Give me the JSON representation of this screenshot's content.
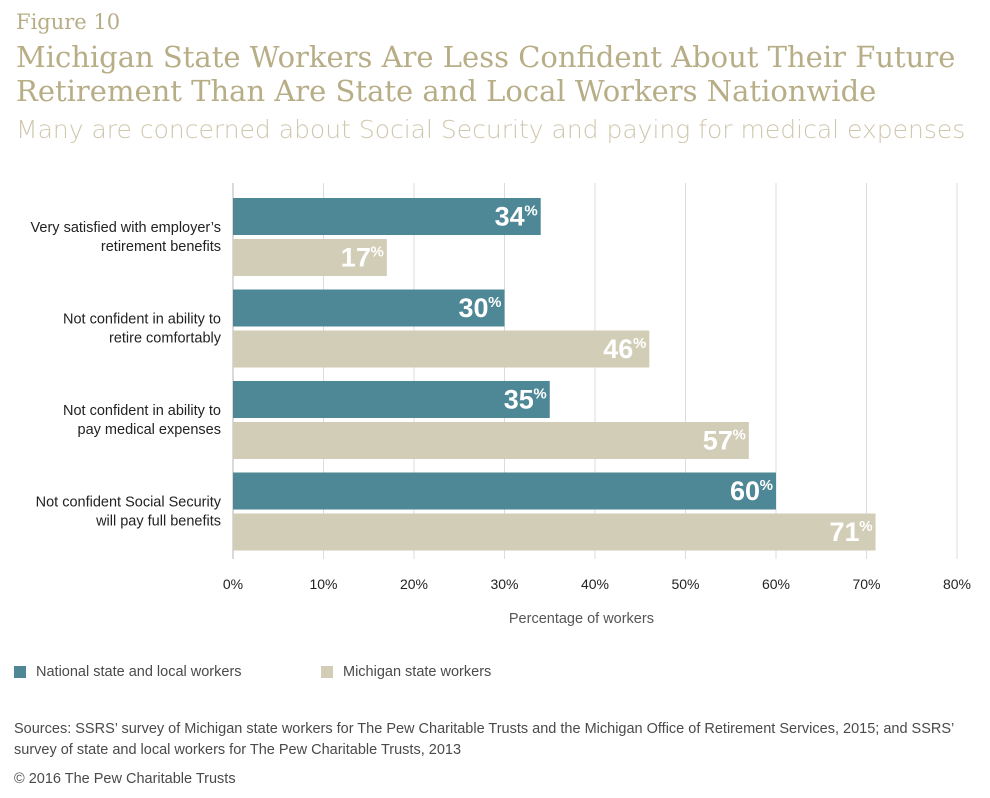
{
  "header": {
    "figure_label": "Figure 10",
    "title": "Michigan State Workers Are Less Confident About Their Future Retirement Than Are State and Local Workers Nationwide",
    "subtitle": "Many are concerned about Social Security and paying for medical expenses"
  },
  "chart_data": {
    "type": "bar",
    "orientation": "horizontal",
    "categories": [
      "Very satisfied with employer’s retirement benefits",
      "Not confident in ability to retire comfortably",
      "Not confident in ability to pay medical expenses",
      "Not confident Social Security will pay full benefits"
    ],
    "category_lines": [
      [
        "Very satisfied with employer’s",
        "retirement benefits"
      ],
      [
        "Not confident in ability to",
        "retire comfortably"
      ],
      [
        "Not confident in ability to",
        "pay medical expenses"
      ],
      [
        "Not confident Social Security",
        "will pay full benefits"
      ]
    ],
    "series": [
      {
        "name": "National state and local workers",
        "values": [
          34,
          30,
          35,
          60
        ],
        "color": "#4e8796"
      },
      {
        "name": "Michigan state workers",
        "values": [
          17,
          46,
          57,
          71
        ],
        "color": "#d2cdb6"
      }
    ],
    "value_suffix": "%",
    "xlabel": "Percentage of workers",
    "xlim": [
      0,
      80
    ],
    "xticks": [
      0,
      10,
      20,
      30,
      40,
      50,
      60,
      70,
      80
    ],
    "xtick_labels": [
      "0%",
      "10%",
      "20%",
      "30%",
      "40%",
      "50%",
      "60%",
      "70%",
      "80%"
    ],
    "grid": true,
    "legend_position": "bottom-left"
  },
  "legend": {
    "items": [
      {
        "label": "National state and local workers",
        "color": "#4e8796"
      },
      {
        "label": "Michigan state workers",
        "color": "#d2cdb6"
      }
    ]
  },
  "footer": {
    "sources": "Sources: SSRS’ survey of Michigan state workers for The Pew Charitable Trusts and the Michigan Office of Retirement Services, 2015; and SSRS’ survey of state and local workers for The Pew Charitable Trusts, 2013",
    "copyright": "© 2016 The Pew Charitable Trusts"
  }
}
